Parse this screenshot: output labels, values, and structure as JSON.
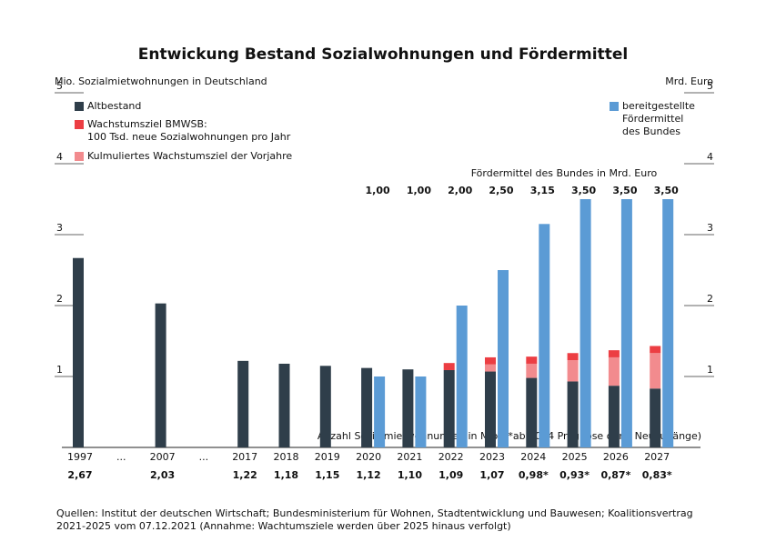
{
  "chart_data": {
    "type": "bar",
    "title": "Entwickung Bestand Sozialwohnungen und Fördermittel",
    "y_label": "Mio. Sozialmietwohnungen in Deutschland",
    "y2_label": "Mrd. Euro",
    "top_annotation": "Fördermittel des Bundes in Mrd. Euro",
    "bottom_annotation": "Anzahl Sozialmietwohnungen in Mio. (*ab 2024 Prognose ohne Neuzugänge)",
    "source": "Quellen: Institut der deutschen Wirtschaft; Bundesministerium für Wohnen, Stadtentwicklung und Bauwesen; Koalitionsvertrag 2021-2025 vom 07.12.2021 (Annahme: Wachtumsziele werden über 2025 hinaus verfolgt)",
    "categories": [
      "1997",
      "...",
      "2007",
      "...",
      "2017",
      "2018",
      "2019",
      "2020",
      "2021",
      "2022",
      "2023",
      "2024",
      "2025",
      "2026",
      "2027"
    ],
    "series": [
      {
        "name": "Altbestand",
        "color": "#2f3e4a",
        "values": [
          2.67,
          null,
          2.03,
          null,
          1.22,
          1.18,
          1.15,
          1.12,
          1.1,
          1.09,
          1.07,
          0.98,
          0.93,
          0.87,
          0.83
        ],
        "value_labels": [
          "2,67",
          null,
          "2,03",
          null,
          "1,22",
          "1,18",
          "1,15",
          "1,12",
          "1,10",
          "1,09",
          "1,07",
          "0,98*",
          "0,93*",
          "0,87*",
          "0,83*"
        ]
      },
      {
        "name": "Kulmuliertes Wachstumsziel der Vorjahre",
        "color": "#f28b8e",
        "values": [
          null,
          null,
          null,
          null,
          null,
          null,
          null,
          null,
          null,
          null,
          0.1,
          0.2,
          0.3,
          0.4,
          0.5
        ]
      },
      {
        "name": "Wachstumsziel BMWSB:\n100 Tsd. neue Sozialwohnungen pro Jahr",
        "color": "#ec3e43",
        "values": [
          null,
          null,
          null,
          null,
          null,
          null,
          null,
          null,
          null,
          0.1,
          0.1,
          0.1,
          0.1,
          0.1,
          0.1
        ]
      },
      {
        "name": "bereitgestellte\nFördermittel\ndes Bundes",
        "color": "#5b9bd5",
        "axis": "y2",
        "values": [
          null,
          null,
          null,
          null,
          null,
          null,
          null,
          1.0,
          1.0,
          2.0,
          2.5,
          3.15,
          3.5,
          3.5,
          3.5
        ],
        "value_labels": [
          null,
          null,
          null,
          null,
          null,
          null,
          null,
          "1,00",
          "1,00",
          "2,00",
          "2,50",
          "3,15",
          "3,50",
          "3,50",
          "3,50"
        ]
      }
    ],
    "ylim": [
      0,
      5
    ],
    "yticks": [
      1,
      2,
      3,
      4,
      5
    ],
    "y2lim": [
      0,
      5
    ],
    "y2ticks": [
      1,
      2,
      3,
      4,
      5
    ]
  }
}
